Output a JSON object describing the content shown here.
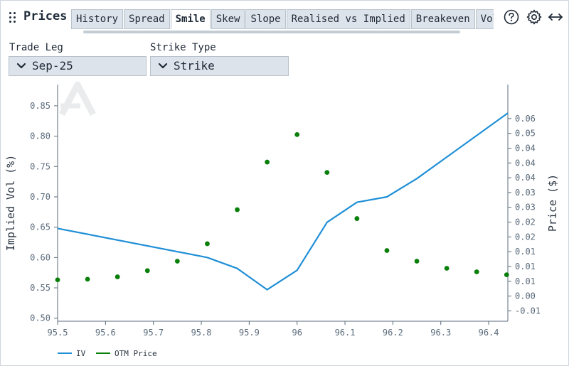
{
  "header": {
    "title": "Prices",
    "tabs": [
      "History",
      "Spread",
      "Smile",
      "Skew",
      "Slope",
      "Realised vs Implied",
      "Breakeven",
      "Volatility"
    ],
    "active_tab": "Smile"
  },
  "controls": {
    "trade_leg_label": "Trade Leg",
    "trade_leg_value": "Sep-25",
    "strike_type_label": "Strike Type",
    "strike_type_value": "Strike"
  },
  "colors": {
    "iv_line": "#1f8fd6",
    "otm_price": "#0a7f0a",
    "axis": "#5b6b7b",
    "grid": "#e6e9ee"
  },
  "chart_data": {
    "type": "line",
    "x_ticks": [
      "95.5",
      "95.6",
      "95.7",
      "95.8",
      "95.9",
      "96",
      "96.1",
      "96.2",
      "96.3",
      "96.4"
    ],
    "xlim": [
      95.5,
      96.44
    ],
    "ylabel": "Implied Vol (%)",
    "y_ticks": [
      "0.50",
      "0.55",
      "0.60",
      "0.65",
      "0.70",
      "0.75",
      "0.80",
      "0.85"
    ],
    "ylim": [
      0.495,
      0.885
    ],
    "y2label": "Price ($)",
    "y2_ticks": [
      "-0.01",
      "0.00",
      "0.01",
      "0.01",
      "0.01",
      "0.02",
      "0.02",
      "0.03",
      "0.03",
      "0.04",
      "0.04",
      "0.04",
      "0.05",
      "0.06"
    ],
    "y2lim": [
      -0.0135,
      0.0665
    ],
    "legend": [
      "IV",
      "OTM Price"
    ],
    "legend_position": "bottom-left",
    "grid": false,
    "series": [
      {
        "name": "IV",
        "axis": "left",
        "style": "line",
        "x": [
          95.5,
          95.8125,
          95.875,
          95.9375,
          96.0,
          96.0625,
          96.125,
          96.1875,
          96.25,
          96.44
        ],
        "y": [
          0.648,
          0.6,
          0.582,
          0.547,
          0.579,
          0.658,
          0.691,
          0.7,
          0.73,
          0.838
        ]
      },
      {
        "name": "OTM Price",
        "axis": "right",
        "style": "scatter",
        "x": [
          95.5,
          95.5625,
          95.625,
          95.6875,
          95.75,
          95.8125,
          95.875,
          95.9375,
          96.0,
          96.0625,
          96.125,
          96.1875,
          96.25,
          96.3125,
          96.375,
          96.4375
        ],
        "y": [
          0.0005,
          0.0007,
          0.0015,
          0.0036,
          0.0068,
          0.0127,
          0.0242,
          0.0403,
          0.0496,
          0.0368,
          0.0212,
          0.0104,
          0.0068,
          0.0044,
          0.0032,
          0.0022
        ]
      }
    ]
  }
}
